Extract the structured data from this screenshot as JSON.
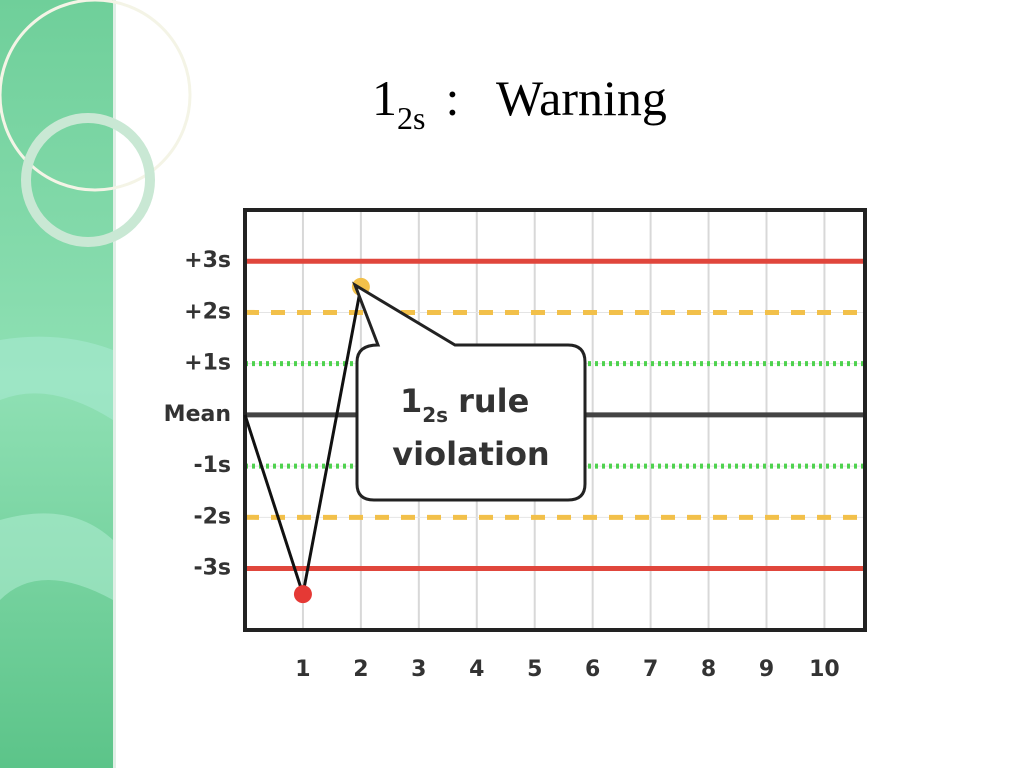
{
  "chart_data": {
    "type": "line",
    "title": "1",
    "title_subscript": "2s",
    "title_suffix": ":   Warning",
    "x": [
      0,
      1,
      2
    ],
    "series": [
      {
        "color": "#111111",
        "values": [
          0,
          -3.5,
          2.5
        ],
        "marker_colors": [
          null,
          "#e53935",
          "#f2c04a"
        ]
      }
    ],
    "xlim": [
      0,
      10.7
    ],
    "xticks": [
      1,
      2,
      3,
      4,
      5,
      6,
      7,
      8,
      9,
      10
    ],
    "ylim": [
      -4.2,
      4
    ],
    "yticks": [
      {
        "value": 3,
        "label": "+3s"
      },
      {
        "value": 2,
        "label": "+2s"
      },
      {
        "value": 1,
        "label": "+1s"
      },
      {
        "value": 0,
        "label": "Mean"
      },
      {
        "value": -1,
        "label": "-1s"
      },
      {
        "value": -2,
        "label": "-2s"
      },
      {
        "value": -3,
        "label": "-3s"
      }
    ],
    "reference_lines": [
      {
        "y": 3,
        "color": "#e0463c",
        "dash": "solid"
      },
      {
        "y": 2,
        "color": "#f2c04a",
        "dash": "dashed"
      },
      {
        "y": 1,
        "color": "#4fd24f",
        "dash": "dotted"
      },
      {
        "y": 0,
        "color": "#444444",
        "dash": "solid"
      },
      {
        "y": -1,
        "color": "#4fd24f",
        "dash": "dotted"
      },
      {
        "y": -2,
        "color": "#f2c04a",
        "dash": "dashed"
      },
      {
        "y": -3,
        "color": "#e0463c",
        "dash": "solid"
      }
    ],
    "grid": true,
    "annotation": {
      "text": "1",
      "subscript": "2s",
      "text_suffix": "rule",
      "line2": "violation"
    }
  }
}
